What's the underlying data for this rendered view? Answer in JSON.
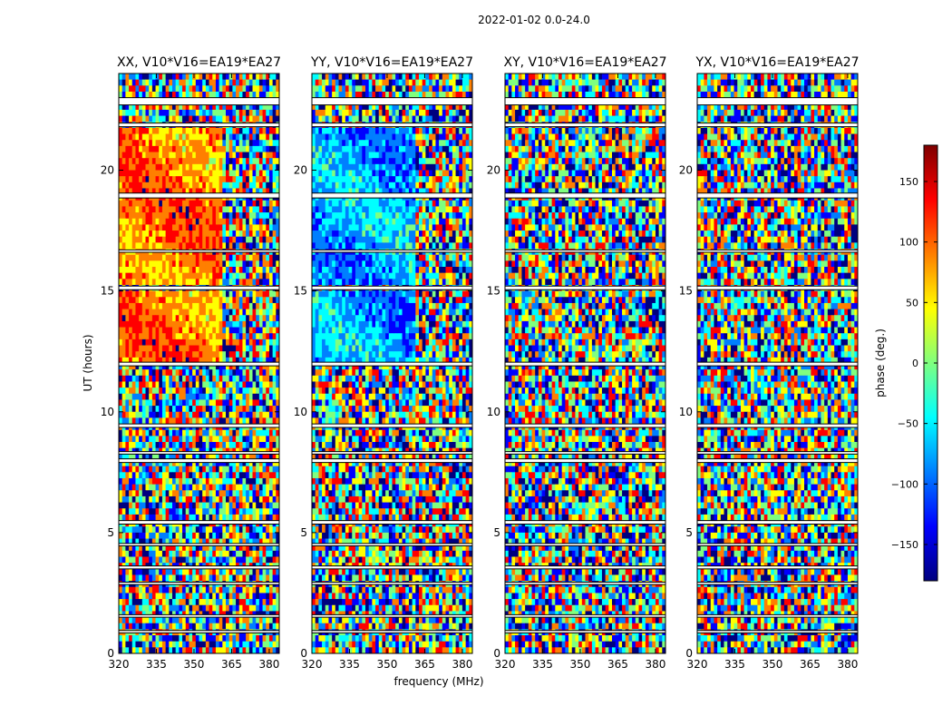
{
  "figure": {
    "suptitle": "2022-01-02 0.0-24.0",
    "xlabel": "frequency (MHz)",
    "ylabel": "UT (hours)"
  },
  "colorbar": {
    "label": "phase (deg.)",
    "range": [
      -180,
      180
    ],
    "ticks": [
      150,
      100,
      50,
      0,
      -50,
      -100,
      -150
    ],
    "tick_labels": [
      "150",
      "100",
      "50",
      "0",
      "−50",
      "−100",
      "−150"
    ],
    "colormap": [
      "#00007f",
      "#0000ff",
      "#007fff",
      "#00ffff",
      "#7fff7f",
      "#ffff00",
      "#ff7f00",
      "#ff0000",
      "#7f0000"
    ]
  },
  "chart_data": {
    "type": "heatmap",
    "x_range": [
      320,
      384
    ],
    "y_range": [
      0,
      24
    ],
    "x_ticks": [
      320,
      335,
      350,
      365,
      380
    ],
    "x_tick_labels": [
      "320",
      "335",
      "350",
      "365",
      "380"
    ],
    "y_ticks": [
      0,
      5,
      10,
      15,
      20
    ],
    "y_tick_labels": [
      "0",
      "5",
      "10",
      "15",
      "20"
    ],
    "value_label": "phase (deg.)",
    "panels": [
      {
        "title": "XX, V10*V16=EA19*EA27"
      },
      {
        "title": "YY, V10*V16=EA19*EA27"
      },
      {
        "title": "XY, V10*V16=EA19*EA27"
      },
      {
        "title": "YX, V10*V16=EA19*EA27"
      }
    ],
    "flagged_uth_bands": [
      [
        0.85,
        0.95
      ],
      [
        1.5,
        1.6
      ],
      [
        2.85,
        2.95
      ],
      [
        3.5,
        3.62
      ],
      [
        4.45,
        4.55
      ],
      [
        5.35,
        5.5
      ],
      [
        7.9,
        8.05
      ],
      [
        8.25,
        8.35
      ],
      [
        9.35,
        9.5
      ],
      [
        11.9,
        12.05
      ],
      [
        15.05,
        15.2
      ],
      [
        16.6,
        16.7
      ],
      [
        18.85,
        19.05
      ],
      [
        21.8,
        21.95
      ],
      [
        22.7,
        23.0
      ]
    ]
  }
}
